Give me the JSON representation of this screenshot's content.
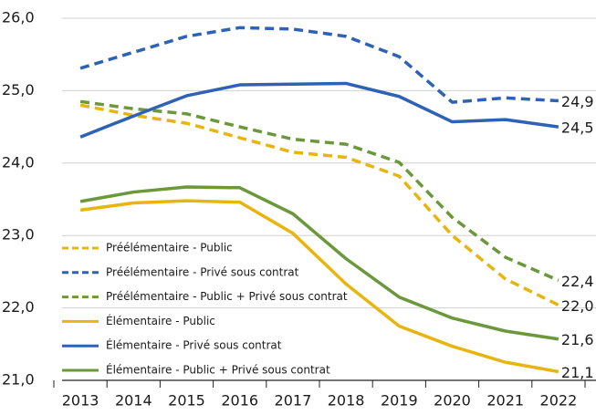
{
  "chart_data": {
    "type": "line",
    "categories": [
      "2013",
      "2014",
      "2015",
      "2016",
      "2017",
      "2018",
      "2019",
      "2020",
      "2021",
      "2022"
    ],
    "series": [
      {
        "name": "Préélémentaire - Public",
        "color": "#e8b50f",
        "dashed": true,
        "values": [
          24.8,
          24.66,
          24.55,
          24.35,
          24.15,
          24.08,
          23.82,
          23.0,
          22.4,
          22.04
        ],
        "value_labels": [
          null,
          null,
          null,
          null,
          null,
          null,
          null,
          null,
          null,
          "22,0"
        ]
      },
      {
        "name": "Préélémentaire - Privé sous contrat",
        "color": "#2e62b4",
        "dashed": true,
        "values": [
          25.31,
          25.53,
          25.75,
          25.87,
          25.85,
          25.75,
          25.47,
          24.84,
          24.9,
          24.86
        ],
        "value_labels": [
          null,
          null,
          null,
          null,
          null,
          null,
          null,
          null,
          null,
          "24,9"
        ]
      },
      {
        "name": "Préélémentaire - Public + Privé sous contrat",
        "color": "#6a983a",
        "dashed": true,
        "values": [
          24.85,
          24.75,
          24.68,
          24.5,
          24.33,
          24.26,
          24.01,
          23.25,
          22.7,
          22.38
        ],
        "value_labels": [
          null,
          null,
          null,
          null,
          null,
          null,
          null,
          null,
          null,
          "22,4"
        ]
      },
      {
        "name": "Élémentaire - Public",
        "color": "#e8b50f",
        "dashed": false,
        "values": [
          23.35,
          23.45,
          23.48,
          23.46,
          23.03,
          22.33,
          21.75,
          21.47,
          21.25,
          21.12
        ],
        "value_labels": [
          null,
          null,
          null,
          null,
          null,
          null,
          null,
          null,
          null,
          "21,1"
        ]
      },
      {
        "name": "Élémentaire - Privé sous contrat",
        "color": "#2e62b4",
        "dashed": false,
        "values": [
          24.36,
          24.65,
          24.93,
          25.08,
          25.09,
          25.1,
          24.92,
          24.57,
          24.6,
          24.5
        ],
        "value_labels": [
          null,
          null,
          null,
          null,
          null,
          null,
          null,
          null,
          null,
          "24,5"
        ]
      },
      {
        "name": "Élémentaire - Public + Privé sous contrat",
        "color": "#6a983a",
        "dashed": false,
        "values": [
          23.47,
          23.6,
          23.67,
          23.66,
          23.3,
          22.68,
          22.15,
          21.86,
          21.68,
          21.57
        ],
        "value_labels": [
          null,
          null,
          null,
          null,
          null,
          null,
          null,
          null,
          null,
          "21,6"
        ]
      }
    ],
    "ylim": [
      21,
      26
    ],
    "yticks": [
      {
        "value": 21,
        "label": "21,0"
      },
      {
        "value": 22,
        "label": "22,0"
      },
      {
        "value": 23,
        "label": "23,0"
      },
      {
        "value": 24,
        "label": "24,0"
      },
      {
        "value": 25,
        "label": "25,0"
      },
      {
        "value": 26,
        "label": "26,0"
      }
    ],
    "grid": true,
    "legend": "lower left"
  }
}
